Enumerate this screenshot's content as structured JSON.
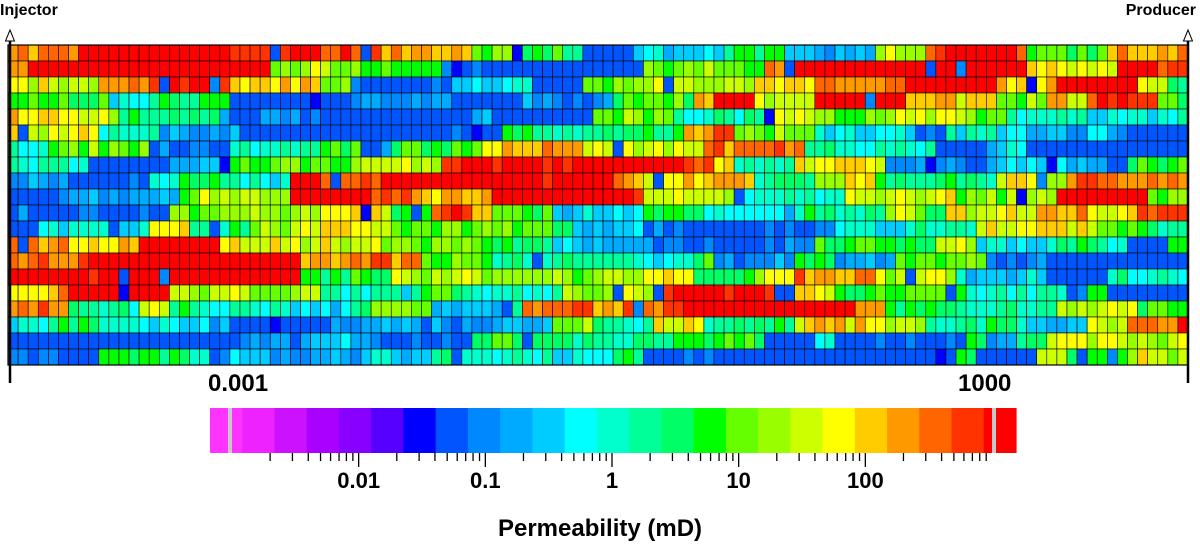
{
  "wells": {
    "injector": "Injector",
    "producer": "Producer"
  },
  "grid": {
    "columns": 117,
    "rows": 20,
    "value_range": [
      "0.001",
      "1000"
    ]
  },
  "colorbar": {
    "colors": [
      "#ff33ff",
      "#ee22ff",
      "#cc11ff",
      "#aa00ff",
      "#8800ff",
      "#5500ff",
      "#0000ff",
      "#0055ff",
      "#0088ff",
      "#00aaff",
      "#00ccff",
      "#00ffff",
      "#00ffcc",
      "#00ff99",
      "#00ff66",
      "#00ff00",
      "#66ff00",
      "#99ff00",
      "#ccff00",
      "#ffff00",
      "#ffcc00",
      "#ff9900",
      "#ff6600",
      "#ff3300",
      "#ff0000"
    ],
    "tick_labels": [
      "0.01",
      "0.1",
      "1",
      "10",
      "100"
    ],
    "title": "Permeability (mD)"
  }
}
